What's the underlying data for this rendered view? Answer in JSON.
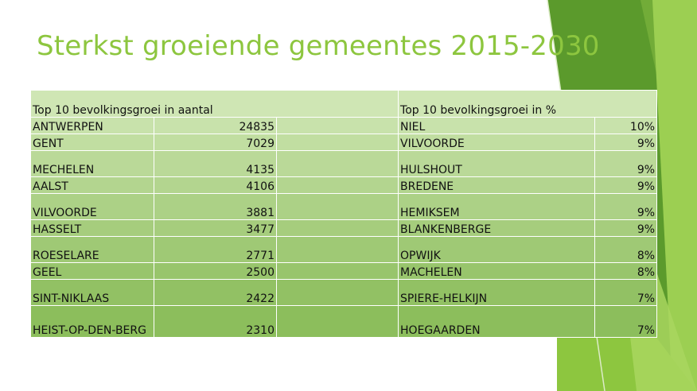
{
  "title": "Sterkst groeiende gemeentes 2015-2030",
  "table": {
    "header_left": "Top 10 bevolkingsgroei in aantal",
    "header_right": "Top 10 bevolkingsgroei in %",
    "rows": [
      {
        "left_name": "ANTWERPEN",
        "left_value": "24835",
        "right_name": "NIEL",
        "right_value": "10%"
      },
      {
        "left_name": "GENT",
        "left_value": "7029",
        "right_name": "VILVOORDE",
        "right_value": "9%"
      },
      {
        "left_name": "MECHELEN",
        "left_value": "4135",
        "right_name": "HULSHOUT",
        "right_value": "9%"
      },
      {
        "left_name": "AALST",
        "left_value": "4106",
        "right_name": "BREDENE",
        "right_value": "9%"
      },
      {
        "left_name": "VILVOORDE",
        "left_value": "3881",
        "right_name": "HEMIKSEM",
        "right_value": "9%"
      },
      {
        "left_name": "HASSELT",
        "left_value": "3477",
        "right_name": "BLANKENBERGE",
        "right_value": "9%"
      },
      {
        "left_name": "ROESELARE",
        "left_value": "2771",
        "right_name": "OPWIJK",
        "right_value": "8%"
      },
      {
        "left_name": "GEEL",
        "left_value": "2500",
        "right_name": "MACHELEN",
        "right_value": "8%"
      },
      {
        "left_name": "SINT-NIKLAAS",
        "left_value": "2422",
        "right_name": "SPIERE-HELKIJN",
        "right_value": "7%"
      },
      {
        "left_name": "HEIST-OP-DEN-BERG",
        "left_value": "2310",
        "right_name": "HOEGAARDEN",
        "right_value": "7%"
      }
    ]
  },
  "colors": {
    "title": "#8dc63f",
    "header_fill": "#cfe6b4",
    "deco_dark": "#5b9a2c",
    "deco_light": "#8dc63f"
  }
}
